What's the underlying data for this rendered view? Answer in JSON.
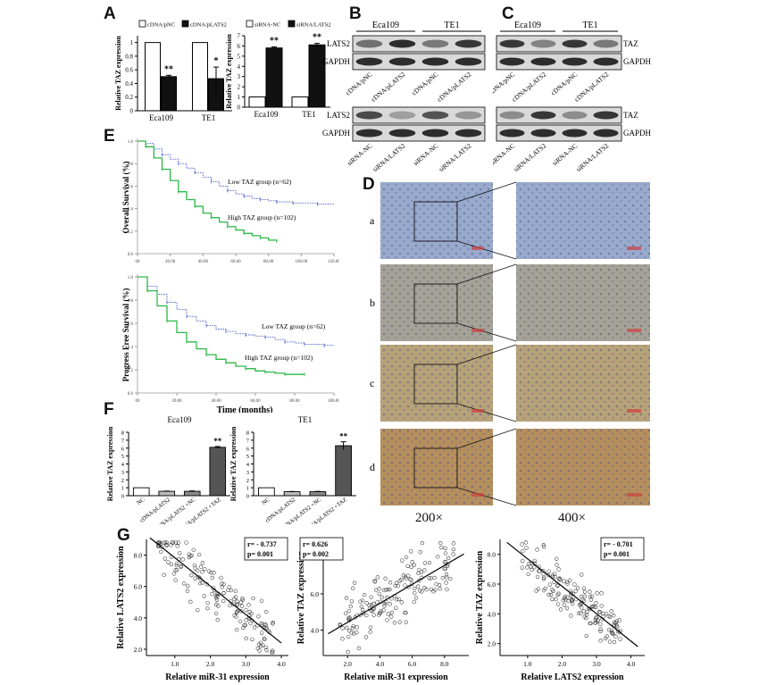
{
  "panel_labels": [
    "A",
    "B",
    "C",
    "D",
    "E",
    "F",
    "G"
  ],
  "chart_data": [
    {
      "id": "A1",
      "type": "bar",
      "categories": [
        "Eca109",
        "TE1"
      ],
      "series": [
        {
          "name": "cDNA/pNC",
          "values": [
            1.0,
            1.0
          ],
          "errors": [
            0,
            0
          ],
          "color": "#ffffff"
        },
        {
          "name": "cDNA/pLATS2",
          "values": [
            0.5,
            0.47
          ],
          "errors": [
            0.02,
            0.17
          ],
          "color": "#111111"
        }
      ],
      "annotations": [
        "**",
        "*"
      ],
      "ylabel": "Relative TAZ expression",
      "yticks": [
        "0",
        "0.2",
        "0.4",
        "0.6",
        "0.8",
        "1"
      ],
      "ylim": [
        0,
        1.1
      ]
    },
    {
      "id": "A2",
      "type": "bar",
      "categories": [
        "Eca109",
        "TE1"
      ],
      "series": [
        {
          "name": "siRNA-NC",
          "values": [
            1.0,
            1.0
          ],
          "errors": [
            0,
            0
          ],
          "color": "#ffffff"
        },
        {
          "name": "siRNA/LATS2",
          "values": [
            5.8,
            6.1
          ],
          "errors": [
            0.1,
            0.15
          ],
          "color": "#111111"
        }
      ],
      "annotations": [
        "**",
        "**"
      ],
      "ylabel": "Relative TAZ expression",
      "yticks": [
        "0",
        "1",
        "2",
        "3",
        "4",
        "5",
        "6",
        "7"
      ],
      "ylim": [
        0,
        7
      ]
    },
    {
      "id": "E1",
      "type": "line",
      "ylabel": "Overall Survival (%)",
      "yticks": [
        "0.0",
        "0.2",
        "0.4",
        "0.6",
        "0.8",
        "1.0"
      ],
      "xticks": [
        "00",
        "20.00",
        "40.00",
        "60.00",
        "80.00",
        "100.00",
        "120.00"
      ],
      "xlim": [
        0,
        120
      ],
      "ylim": [
        0,
        1.0
      ],
      "series": [
        {
          "name": "Low TAZ group (n=62)",
          "color": "#4a5ec9",
          "x": [
            0,
            5,
            10,
            15,
            20,
            25,
            30,
            35,
            40,
            45,
            50,
            55,
            60,
            65,
            70,
            75,
            80,
            85,
            90,
            95,
            100,
            110,
            120
          ],
          "y": [
            1.0,
            0.98,
            0.93,
            0.88,
            0.84,
            0.8,
            0.76,
            0.72,
            0.68,
            0.64,
            0.6,
            0.56,
            0.53,
            0.51,
            0.49,
            0.48,
            0.47,
            0.46,
            0.46,
            0.45,
            0.45,
            0.44,
            0.44
          ]
        },
        {
          "name": "High TAZ group (n=102)",
          "color": "#2db84a",
          "x": [
            0,
            5,
            10,
            15,
            20,
            25,
            30,
            35,
            40,
            45,
            50,
            55,
            60,
            65,
            70,
            75,
            80,
            85
          ],
          "y": [
            1.0,
            0.95,
            0.85,
            0.75,
            0.65,
            0.55,
            0.48,
            0.42,
            0.36,
            0.32,
            0.28,
            0.24,
            0.21,
            0.18,
            0.16,
            0.14,
            0.12,
            0.11
          ]
        }
      ]
    },
    {
      "id": "E2",
      "type": "line",
      "ylabel": "Progress Free Survival (%)",
      "xlabel": "Time (months)",
      "yticks": [
        "0.0",
        "0.2",
        "0.4",
        "0.6",
        "0.8",
        "1.0"
      ],
      "xticks": [
        "00",
        "20.00",
        "40.00",
        "60.00",
        "80.00",
        "100.00"
      ],
      "xlim": [
        0,
        100
      ],
      "ylim": [
        0,
        1.0
      ],
      "series": [
        {
          "name": "Low TAZ group (n=62)",
          "color": "#4a5ec9",
          "x": [
            0,
            5,
            10,
            15,
            20,
            25,
            30,
            35,
            40,
            45,
            50,
            55,
            60,
            65,
            70,
            75,
            80,
            85,
            90,
            95,
            100
          ],
          "y": [
            1.0,
            0.92,
            0.85,
            0.78,
            0.72,
            0.66,
            0.62,
            0.58,
            0.55,
            0.53,
            0.51,
            0.5,
            0.49,
            0.48,
            0.46,
            0.44,
            0.43,
            0.42,
            0.42,
            0.41,
            0.41
          ]
        },
        {
          "name": "High TAZ group (n=102)",
          "color": "#2db84a",
          "x": [
            0,
            5,
            10,
            15,
            20,
            25,
            30,
            35,
            40,
            45,
            50,
            55,
            60,
            65,
            70,
            75,
            80,
            85
          ],
          "y": [
            1.0,
            0.88,
            0.75,
            0.62,
            0.52,
            0.44,
            0.38,
            0.33,
            0.29,
            0.26,
            0.23,
            0.21,
            0.19,
            0.18,
            0.17,
            0.16,
            0.16,
            0.16
          ]
        }
      ]
    },
    {
      "id": "F1",
      "type": "bar",
      "title": "Eca109",
      "categories": [
        "NC",
        "cDNA/pLATS2",
        "cDNA/pLATS2\n+NC",
        "cDNA/pLATS2\n+TAZ"
      ],
      "values": [
        1.0,
        0.55,
        0.55,
        6.1
      ],
      "errors": [
        0,
        0.03,
        0.05,
        0.1
      ],
      "colors": [
        "#ffffff",
        "#bbbbbb",
        "#888888",
        "#555555"
      ],
      "annotations": [
        "",
        "",
        "",
        "**"
      ],
      "ylabel": "Relative TAZ expression",
      "yticks": [
        "0",
        "1",
        "2",
        "3",
        "4",
        "5",
        "6",
        "7",
        "8"
      ],
      "ylim": [
        0,
        8
      ]
    },
    {
      "id": "F2",
      "type": "bar",
      "title": "TE1",
      "categories": [
        "NC",
        "cDNA/pLATS2",
        "cDNA/pLATS2\n+NC",
        "cDNA/pLATS2\n+TAZ"
      ],
      "values": [
        1.0,
        0.5,
        0.5,
        6.3
      ],
      "errors": [
        0,
        0.03,
        0.04,
        0.5
      ],
      "colors": [
        "#ffffff",
        "#bbbbbb",
        "#888888",
        "#555555"
      ],
      "annotations": [
        "",
        "",
        "",
        "**"
      ],
      "ylabel": "Relative TAZ expression",
      "yticks": [
        "0",
        "1",
        "2",
        "3",
        "4",
        "5",
        "6",
        "7",
        "8"
      ],
      "ylim": [
        0,
        8
      ]
    },
    {
      "id": "G1",
      "type": "scatter",
      "xlabel": "Relative miR-31 expression",
      "ylabel": "Relative LATS2 expression",
      "stats": [
        "r= - 0.737",
        "p= 0.001"
      ],
      "xticks": [
        "1.0",
        "2.0",
        "3.0",
        "4.0"
      ],
      "yticks": [
        "2.0",
        "4.0",
        "6.0",
        "8.0"
      ],
      "xlim": [
        0.2,
        4.2
      ],
      "ylim": [
        1.6,
        9.0
      ],
      "fit": {
        "x": [
          0.3,
          4.0
        ],
        "y": [
          9.1,
          2.4
        ]
      },
      "points": {
        "n": 160,
        "seed": 11,
        "slope": -1.8,
        "intercept": 9.6,
        "xmin": 0.5,
        "xmax": 3.8,
        "noise": 1.0
      }
    },
    {
      "id": "G2",
      "type": "scatter",
      "xlabel": "Relative miR-31 expression",
      "ylabel": "Relative TAZ expression",
      "stats": [
        "r= 0.626",
        "p= 0.002"
      ],
      "xticks": [
        "2.0",
        "4.0",
        "6.0",
        "8.0"
      ],
      "yticks": [
        "4.0",
        "6.0",
        "8.0"
      ],
      "xlim": [
        0.5,
        9.5
      ],
      "ylim": [
        2.6,
        9.0
      ],
      "fit": {
        "x": [
          0.8,
          9.2
        ],
        "y": [
          3.8,
          8.2
        ]
      },
      "points": {
        "n": 160,
        "seed": 23,
        "slope": 0.52,
        "intercept": 3.4,
        "xmin": 1.5,
        "xmax": 8.6,
        "noise": 1.0
      }
    },
    {
      "id": "G3",
      "type": "scatter",
      "xlabel": "Relative LATS2 expression",
      "ylabel": "Relative TAZ expression",
      "stats": [
        "r= - 0.701",
        "p= 0.001"
      ],
      "xticks": [
        "1.0",
        "2.0",
        "3.0",
        "4.0"
      ],
      "yticks": [
        "2.0",
        "4.0",
        "6.0",
        "8.0"
      ],
      "xlim": [
        0.2,
        4.4
      ],
      "ylim": [
        1.2,
        9.0
      ],
      "fit": {
        "x": [
          0.4,
          4.2
        ],
        "y": [
          8.8,
          1.8
        ]
      },
      "points": {
        "n": 160,
        "seed": 37,
        "slope": -1.8,
        "intercept": 9.2,
        "xmin": 0.8,
        "xmax": 3.7,
        "noise": 1.0
      }
    }
  ],
  "blots": {
    "B": {
      "headers": [
        "Eca109",
        "TE1"
      ],
      "rows_top": [
        "LATS2",
        "GAPDH"
      ],
      "lanes_top": [
        "cDNA/pNC",
        "cDNA/pLATS2",
        "cDNA/pNC",
        "cDNA/pLATS2"
      ],
      "rows_bottom": [
        "LATS2",
        "GAPDH"
      ],
      "lanes_bottom": [
        "siRNA-NC",
        "siRNA/LATS2",
        "siRNA-NC",
        "siRNA/LATS2"
      ]
    },
    "C": {
      "headers": [
        "Eca109",
        "TE1"
      ],
      "rows_top": [
        "TAZ",
        "GAPDH"
      ],
      "lanes_top": [
        "cDNA/pNC",
        "cDNA/pLATS2",
        "cDNA/pNC",
        "cDNA/pLATS2"
      ],
      "rows_bottom": [
        "TAZ",
        "GAPDH"
      ],
      "lanes_bottom": [
        "siRNA-NC",
        "siRNA/LATS2",
        "siRNA-NC",
        "siRNA/LATS2"
      ]
    }
  },
  "ihc": {
    "row_labels": [
      "a",
      "b",
      "c",
      "d"
    ],
    "zoom_labels": [
      "200×",
      "400×"
    ],
    "colors": [
      "#8fa2c8",
      "#9e9a8e",
      "#b19a6e",
      "#b08550"
    ]
  }
}
